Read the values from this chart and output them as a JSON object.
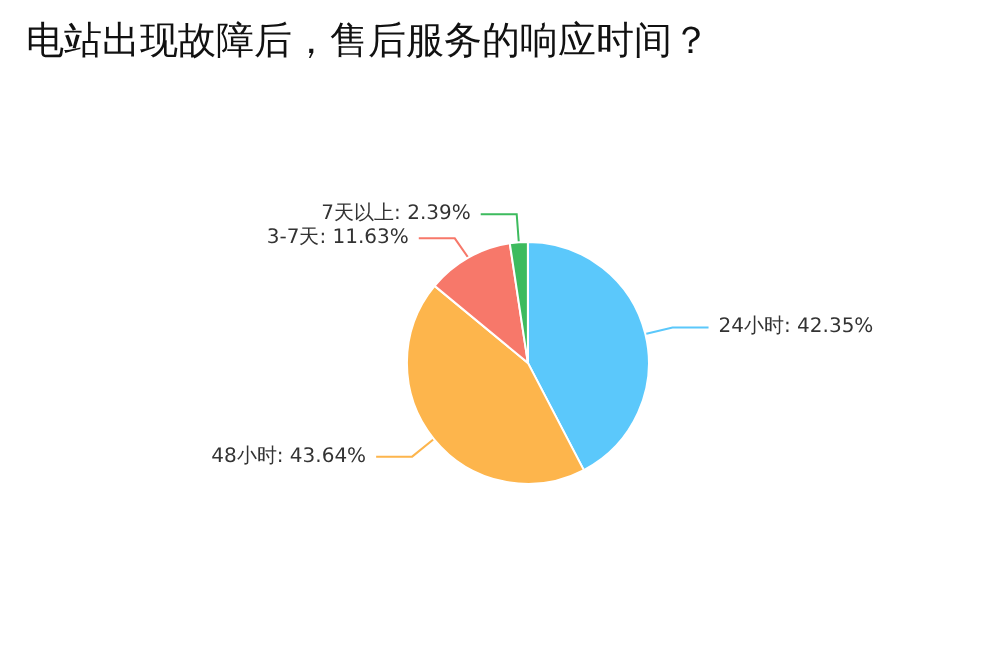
{
  "chart_data": {
    "type": "pie",
    "title": "电站出现故障后，售后服务的响应时间？",
    "categories": [
      "24小时",
      "48小时",
      "3-7天",
      "7天以上"
    ],
    "values": [
      42.35,
      43.64,
      11.63,
      2.39
    ],
    "value_labels": [
      "42.35%",
      "43.64%",
      "11.63%",
      "2.39%"
    ],
    "colors": [
      "#5bc8fb",
      "#fdb54c",
      "#f7786a",
      "#3dbb5e"
    ],
    "legend": false
  }
}
